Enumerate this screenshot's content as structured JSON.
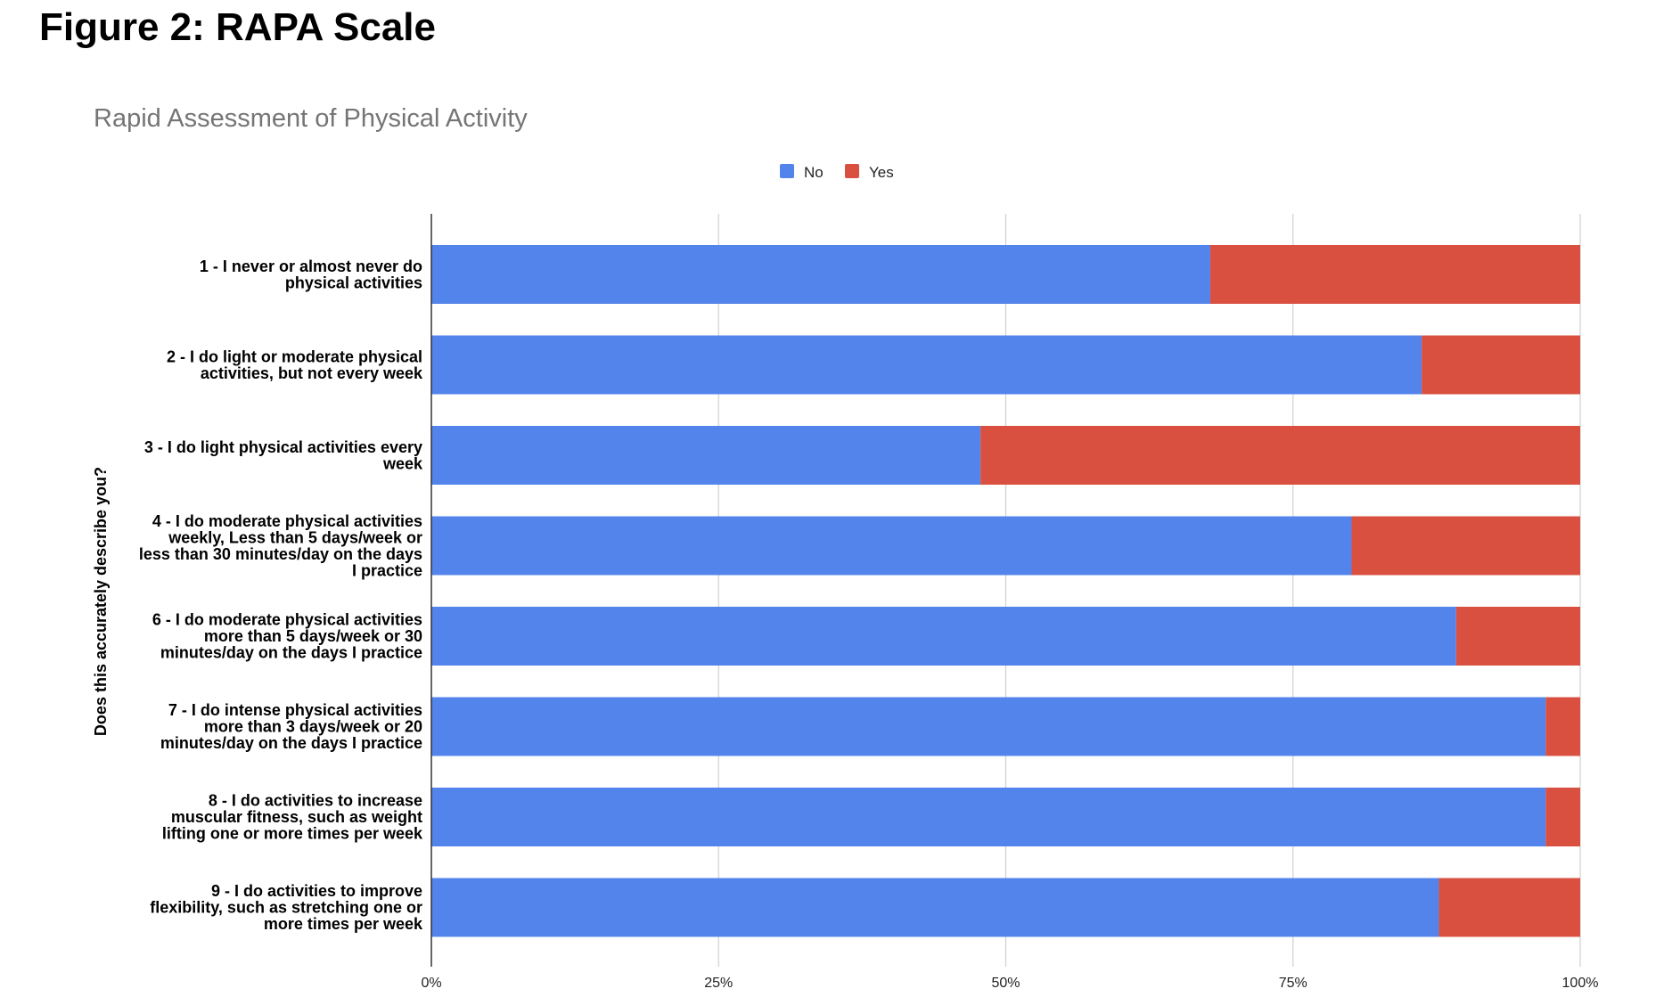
{
  "figure": {
    "title": "Figure 2: RAPA Scale"
  },
  "colors": {
    "no": "#5384EB",
    "yes": "#D95040",
    "grid": "#D0D0D0",
    "axis": "#333333"
  },
  "chart_data": {
    "type": "bar",
    "orientation": "horizontal",
    "stacked": true,
    "stack_mode": "percent",
    "title": "Rapid Assessment of Physical Activity",
    "ylabel": "Does this accurately describe you?",
    "xlabel": "",
    "xlim": [
      0,
      100
    ],
    "x_ticks": [
      "0%",
      "25%",
      "50%",
      "75%",
      "100%"
    ],
    "grid": true,
    "legend": {
      "position": "top-center",
      "entries": [
        "No",
        "Yes"
      ]
    },
    "categories": [
      [
        "1 - I never or almost never do",
        "physical activities"
      ],
      [
        "2 - I do light or moderate physical",
        "activities, but not every week"
      ],
      [
        "3 - I do light physical activities every",
        "week"
      ],
      [
        "4 - I do moderate physical activities",
        "weekly, Less than 5 days/week or",
        "less than 30 minutes/day on the days",
        "I practice"
      ],
      [
        "6 - I do moderate physical activities",
        "more than 5 days/week or 30",
        "minutes/day on the days I practice"
      ],
      [
        "7 - I do intense physical activities",
        "more than 3 days/week or 20",
        "minutes/day on the days I practice"
      ],
      [
        "8 - I do activities to increase",
        "muscular fitness, such as weight",
        "lifting one or more times per week"
      ],
      [
        "9 - I do activities to improve",
        "flexibility, such as stretching one or",
        "more times per week"
      ]
    ],
    "series": [
      {
        "name": "No",
        "values": [
          67.8,
          86.2,
          47.8,
          80.1,
          89.2,
          97.0,
          97.0,
          87.7
        ]
      },
      {
        "name": "Yes",
        "values": [
          32.2,
          13.8,
          52.2,
          19.9,
          10.8,
          3.0,
          3.0,
          12.3
        ]
      }
    ]
  }
}
